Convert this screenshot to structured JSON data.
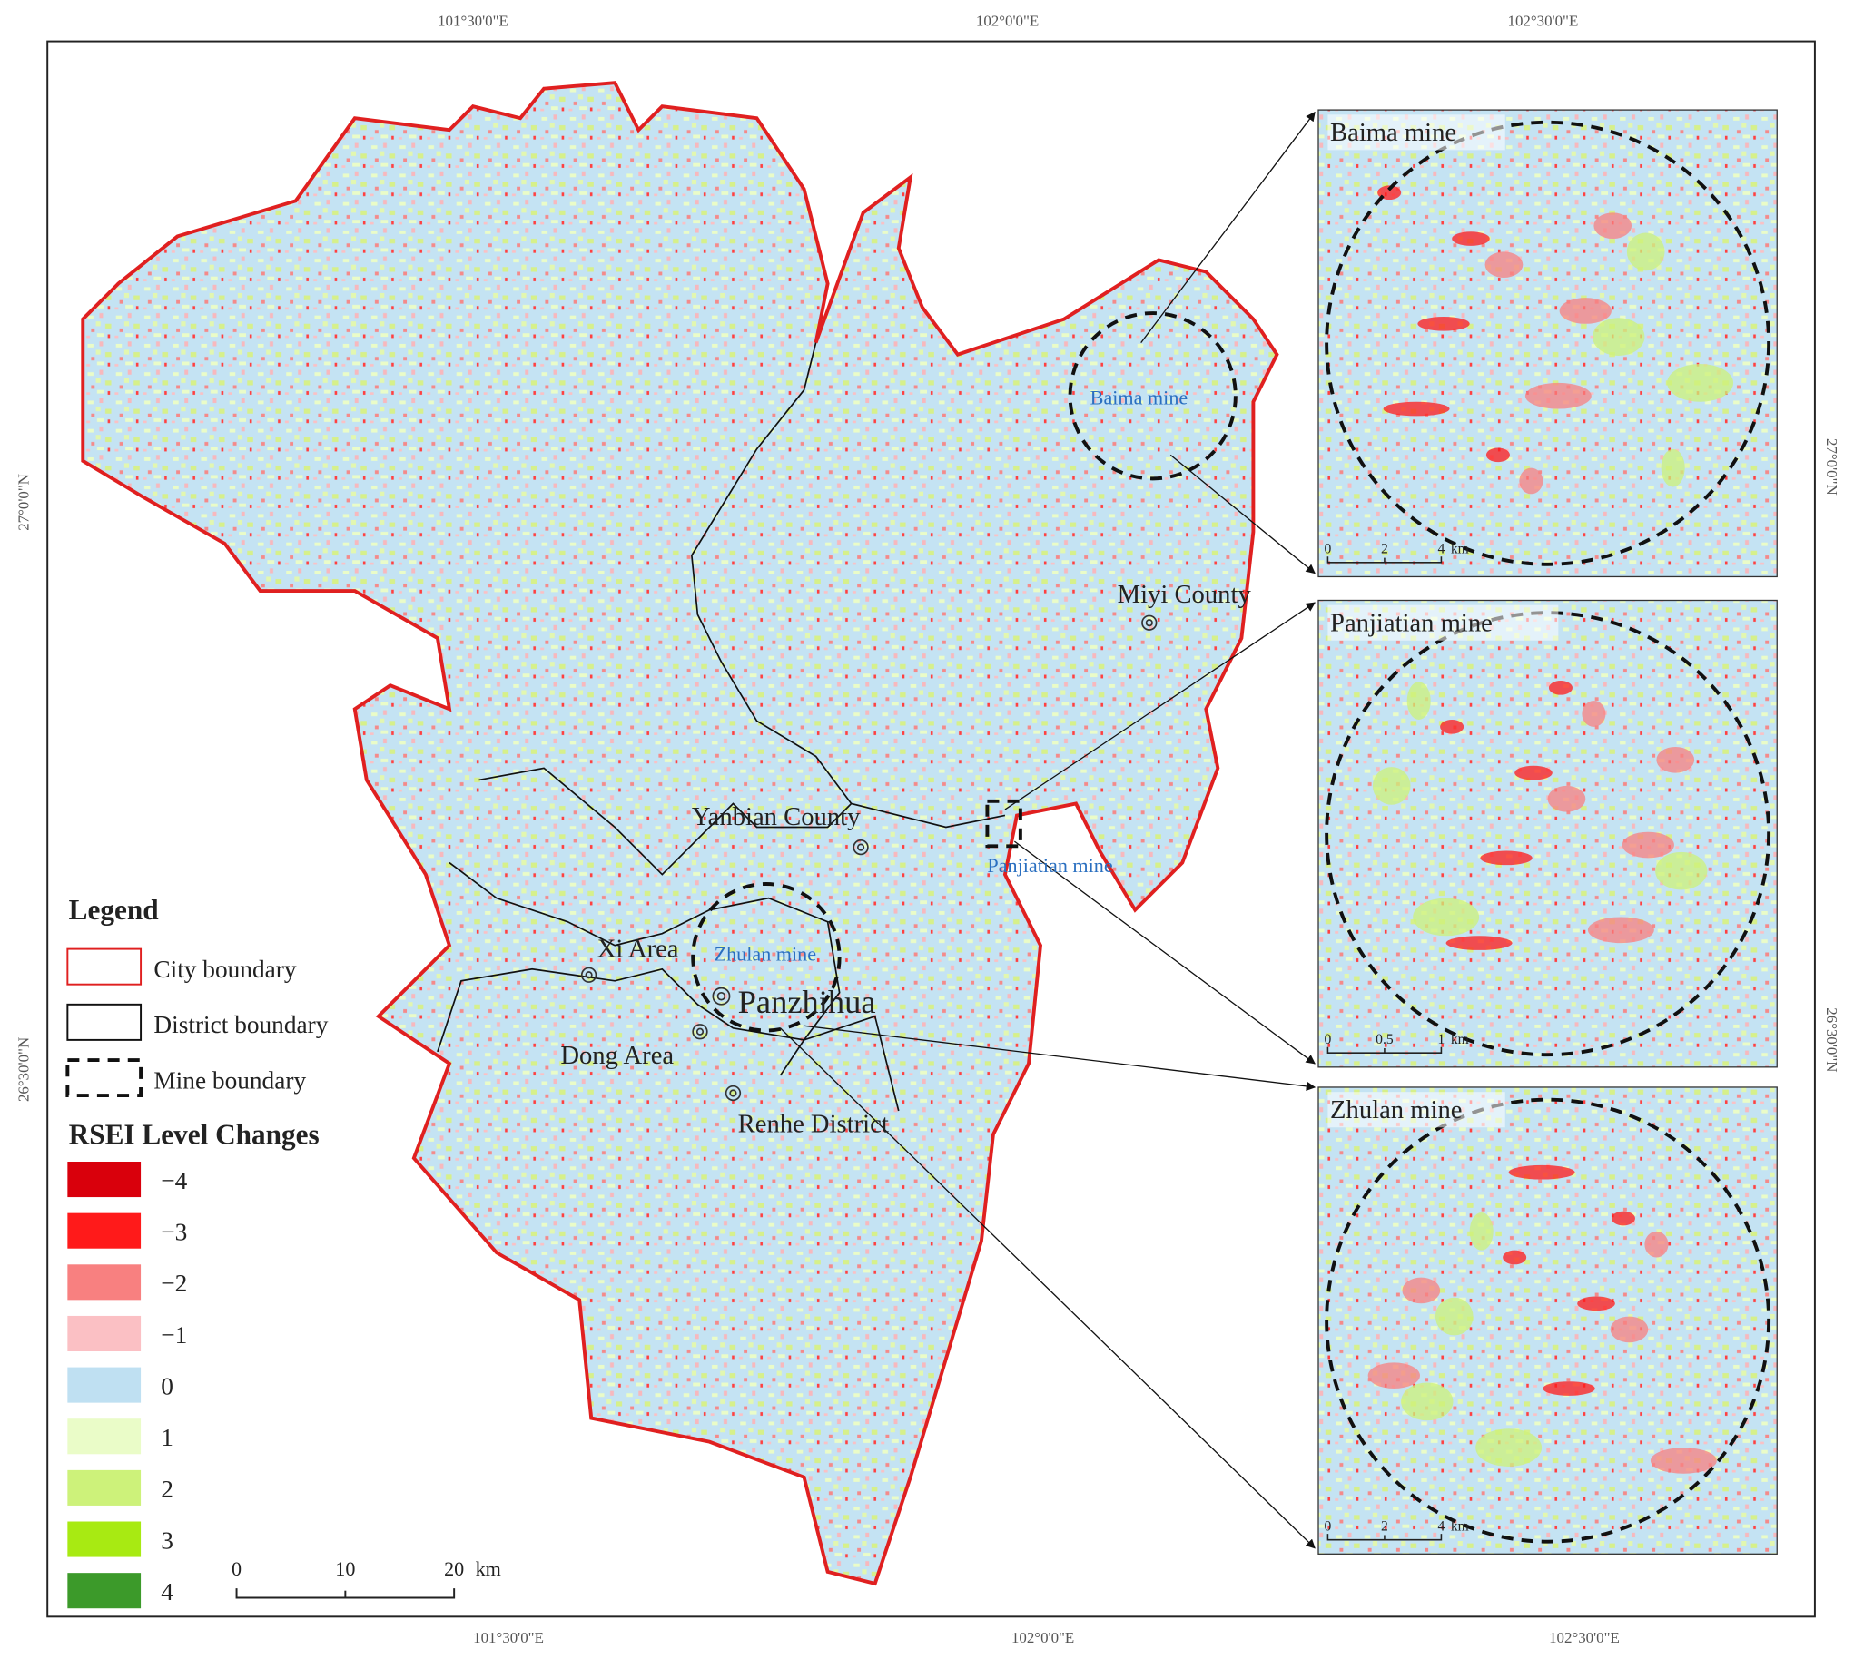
{
  "graticule": {
    "top": [
      "101°30'0\"E",
      "102°0'0\"E",
      "102°30'0\"E"
    ],
    "bottom": [
      "101°30'0\"E",
      "102°0'0\"E",
      "102°30'0\"E"
    ],
    "left": [
      "27°0'0\"N",
      "26°30'0\"N"
    ],
    "right": [
      "27°0'0\"N",
      "26°30'0\"N"
    ]
  },
  "places": [
    "Miyi County",
    "Yanbian County",
    "Xi Area",
    "Panzhihua",
    "Dong Area",
    "Renhe District"
  ],
  "mines": [
    "Baima mine",
    "Panjiatian mine",
    "Zhulan mine"
  ],
  "legend": {
    "title": "Legend",
    "boundaries": [
      "City boundary",
      "District boundary",
      "Mine boundary"
    ],
    "rsei_title": "RSEI Level Changes",
    "levels": [
      {
        "label": "−4",
        "color": "#d9000c"
      },
      {
        "label": "−3",
        "color": "#ff1a1a"
      },
      {
        "label": "−2",
        "color": "#f88080"
      },
      {
        "label": "−1",
        "color": "#fbc0c4"
      },
      {
        "label": "0",
        "color": "#bfe0f2"
      },
      {
        "label": "1",
        "color": "#eafcc8"
      },
      {
        "label": "2",
        "color": "#cdf27a"
      },
      {
        "label": "3",
        "color": "#a8ea12"
      },
      {
        "label": "4",
        "color": "#3c9a2a"
      }
    ]
  },
  "scale_bar": {
    "labels": [
      "0",
      "10",
      "20"
    ],
    "unit": "km"
  },
  "insets": [
    {
      "title": "Baima mine",
      "scale": [
        "0",
        "2",
        "4"
      ],
      "unit": "km"
    },
    {
      "title": "Panjiatian mine",
      "scale": [
        "0",
        "0.5",
        "1"
      ],
      "unit": "km"
    },
    {
      "title": "Zhulan mine",
      "scale": [
        "0",
        "2",
        "4"
      ],
      "unit": "km"
    }
  ]
}
